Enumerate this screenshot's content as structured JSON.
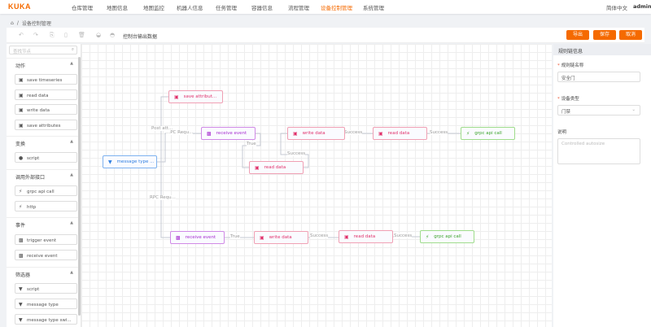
{
  "nav": {
    "logo": "KUKA",
    "items": [
      "仓库管理",
      "地图信息",
      "地图监控",
      "机器人信息",
      "任务管理",
      "容器信息",
      "流程管理",
      "设备控制管理",
      "系统管理"
    ],
    "active_index": 7,
    "language": "简体中文",
    "user": "admin"
  },
  "breadcrumb": {
    "separator": "/",
    "current": "设备控制管理"
  },
  "toolbar": {
    "console_label": "控制台输出数据",
    "export": "导出",
    "save": "保存",
    "cancel": "取消"
  },
  "sidebar": {
    "search_placeholder": "查找节点",
    "sections": [
      {
        "title": "动作",
        "items": [
          "save timeseries",
          "read data",
          "write data",
          "save attributes"
        ]
      },
      {
        "title": "变换",
        "items": [
          "script"
        ]
      },
      {
        "title": "调用外部接口",
        "items": [
          "grpc api call",
          "http"
        ]
      },
      {
        "title": "事件",
        "items": [
          "trigger event",
          "receive event"
        ]
      },
      {
        "title": "筛选器",
        "items": [
          "script",
          "message type",
          "message type swi..."
        ]
      }
    ]
  },
  "canvas": {
    "nodes": {
      "save_attr": "save attribut...",
      "receive1": "receive event",
      "msgtype": "message type ...",
      "write1": "write data",
      "read_mid": "read data",
      "read1": "read data",
      "grpc1": "grpc api call",
      "receive2": "receive event",
      "write2": "write data",
      "read2": "read data",
      "grpc2": "grpc api call"
    },
    "edges": {
      "post_attr": "Post att...",
      "rpc_req1": "...PC Requ...",
      "rpc_req2": "RPC Requ...",
      "true1": "True",
      "success_mid": "Success",
      "success1": "Success",
      "success2": "Success",
      "true2": "True",
      "success3": "Success",
      "success4": "Success"
    }
  },
  "panel": {
    "title": "规则链信息",
    "name_label": "规则链名称",
    "name_value": "安全门",
    "type_label": "设备类型",
    "type_value": "门禁",
    "desc_label": "说明",
    "desc_placeholder": "Controlled autosize"
  },
  "colors": {
    "accent": "#f56a00",
    "action": "#e0306a",
    "event": "#a72fd0",
    "filter": "#2f7ee0",
    "external": "#3aa32a"
  }
}
